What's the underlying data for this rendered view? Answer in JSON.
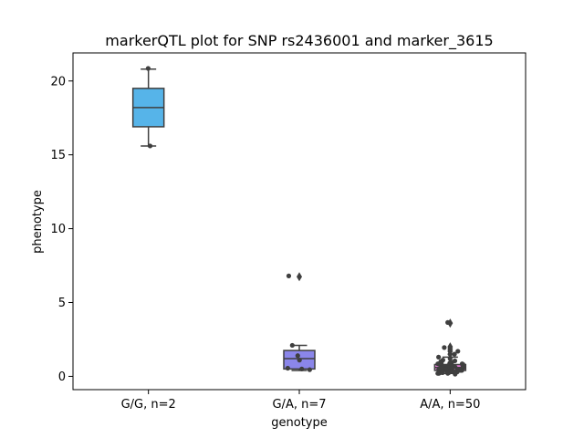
{
  "chart_data": {
    "type": "box",
    "title": "markerQTL plot for SNP rs2436001 and marker_3615",
    "xlabel": "genotype",
    "ylabel": "phenotype",
    "ylim": [
      -0.9,
      21.9
    ],
    "yticks": [
      0,
      5,
      10,
      15,
      20
    ],
    "grid": false,
    "categories": [
      "G/G, n=2",
      "G/A, n=7",
      "A/A, n=50"
    ],
    "boxes": [
      {
        "category": "G/G, n=2",
        "min": 15.6,
        "q1": 16.9,
        "median": 18.2,
        "q3": 19.5,
        "max": 20.8,
        "fliers": [],
        "color": "#56B4E9"
      },
      {
        "category": "G/A, n=7",
        "min": 0.4,
        "q1": 0.5,
        "median": 1.2,
        "q3": 1.75,
        "max": 2.1,
        "fliers": [
          6.75
        ],
        "color": "#8B86EA"
      },
      {
        "category": "A/A, n=50",
        "min": 0.2,
        "q1": 0.4,
        "median": 0.6,
        "q3": 0.8,
        "max": 1.3,
        "fliers": [
          1.5,
          1.7,
          1.85,
          2.0,
          3.6
        ],
        "color": "#E07BD4"
      }
    ],
    "points": [
      {
        "category": "G/G, n=2",
        "values": [
          20.85,
          15.6
        ]
      },
      {
        "category": "G/A, n=7",
        "values": [
          6.8,
          2.1,
          1.4,
          1.1,
          0.55,
          0.45,
          0.5
        ]
      },
      {
        "category": "A/A, n=50",
        "values": [
          3.65,
          1.95,
          1.7,
          1.5,
          1.3,
          1.2,
          1.1,
          1.05,
          1.0,
          0.95,
          0.9,
          0.9,
          0.85,
          0.85,
          0.8,
          0.8,
          0.75,
          0.75,
          0.7,
          0.7,
          0.7,
          0.65,
          0.65,
          0.6,
          0.6,
          0.6,
          0.55,
          0.55,
          0.5,
          0.5,
          0.5,
          0.45,
          0.45,
          0.45,
          0.4,
          0.4,
          0.4,
          0.35,
          0.35,
          0.35,
          0.3,
          0.3,
          0.3,
          0.25,
          0.25,
          0.25,
          0.2,
          0.2,
          0.2,
          0.15
        ]
      }
    ],
    "colors": {
      "box_edge": "#3f3f3f",
      "point": "#3f3f3f",
      "axis": "#000000"
    }
  }
}
